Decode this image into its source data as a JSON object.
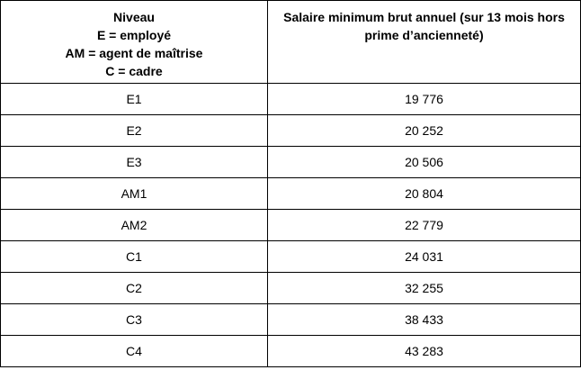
{
  "table": {
    "header": [
      [
        "Niveau",
        "E = employé",
        "AM = agent de maîtrise",
        "C = cadre"
      ],
      [
        "Salaire minimum brut annuel (sur 13 mois hors",
        "prime d’ancienneté)"
      ]
    ],
    "rows": [
      [
        "E1",
        "19 776"
      ],
      [
        "E2",
        "20 252"
      ],
      [
        "E3",
        "20 506"
      ],
      [
        "AM1",
        "20 804"
      ],
      [
        "AM2",
        "22 779"
      ],
      [
        "C1",
        "24 031"
      ],
      [
        "C2",
        "32 255"
      ],
      [
        "C3",
        "38 433"
      ],
      [
        "C4",
        "43 283"
      ]
    ]
  }
}
